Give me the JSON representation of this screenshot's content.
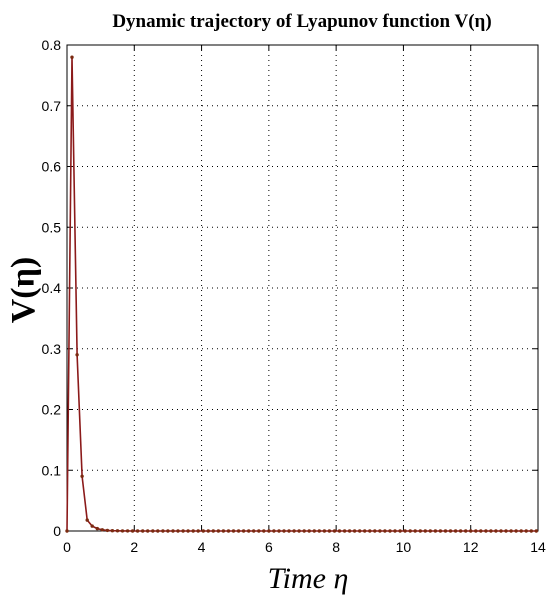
{
  "colors": {
    "line": "#8b1a1a",
    "marker": "#7a2a10",
    "grid": "#000000",
    "axes": "#000000"
  },
  "chart_data": {
    "type": "line",
    "title": "Dynamic trajectory of Lyapunov function V(η)",
    "xlabel": "Time η",
    "ylabel": "V(η)",
    "xlim": [
      0,
      14
    ],
    "ylim": [
      0,
      0.8
    ],
    "xticks": [
      0,
      2,
      4,
      6,
      8,
      10,
      12,
      14
    ],
    "yticks": [
      0,
      0.1,
      0.2,
      0.3,
      0.4,
      0.5,
      0.6,
      0.7,
      0.8
    ],
    "grid": true,
    "legend": "none",
    "series": [
      {
        "x": [
          0,
          0.15,
          0.3,
          0.45,
          0.6,
          0.75,
          0.9,
          1.05,
          1.2,
          1.35,
          1.5,
          1.65,
          1.8,
          1.95,
          2.1,
          2.25,
          2.4,
          2.55,
          2.7,
          2.85,
          3.0,
          3.15,
          3.3,
          3.45,
          3.6,
          3.75,
          3.9,
          4.05,
          4.2,
          4.35,
          4.5,
          4.65,
          4.8,
          4.95,
          5.1,
          5.25,
          5.4,
          5.55,
          5.7,
          5.85,
          6.0,
          6.15,
          6.3,
          6.45,
          6.6,
          6.75,
          6.9,
          7.05,
          7.2,
          7.35,
          7.5,
          7.65,
          7.8,
          7.95,
          8.1,
          8.25,
          8.4,
          8.55,
          8.7,
          8.85,
          9.0,
          9.15,
          9.3,
          9.45,
          9.6,
          9.75,
          9.9,
          10.05,
          10.2,
          10.35,
          10.5,
          10.65,
          10.8,
          10.95,
          11.1,
          11.25,
          11.4,
          11.55,
          11.7,
          11.85,
          12.0,
          12.15,
          12.3,
          12.45,
          12.6,
          12.75,
          12.9,
          13.05,
          13.2,
          13.35,
          13.5,
          13.65,
          13.8,
          13.95
        ],
        "y": [
          0,
          0.78,
          0.29,
          0.09,
          0.018,
          0.008,
          0.004,
          0.002,
          0.001,
          0.0005,
          0.0003,
          0.0002,
          0.0001,
          0,
          0,
          0,
          0,
          0,
          0,
          0,
          0,
          0,
          0,
          0,
          0,
          0,
          0,
          0,
          0,
          0,
          0,
          0,
          0,
          0,
          0,
          0,
          0,
          0,
          0,
          0,
          0,
          0,
          0,
          0,
          0,
          0,
          0,
          0,
          0,
          0,
          0,
          0,
          0,
          0,
          0,
          0,
          0,
          0,
          0,
          0,
          0,
          0,
          0,
          0,
          0,
          0,
          0,
          0,
          0,
          0,
          0,
          0,
          0,
          0,
          0,
          0,
          0,
          0,
          0,
          0,
          0,
          0,
          0,
          0,
          0,
          0,
          0,
          0,
          0,
          0,
          0,
          0,
          0,
          0
        ]
      }
    ]
  }
}
